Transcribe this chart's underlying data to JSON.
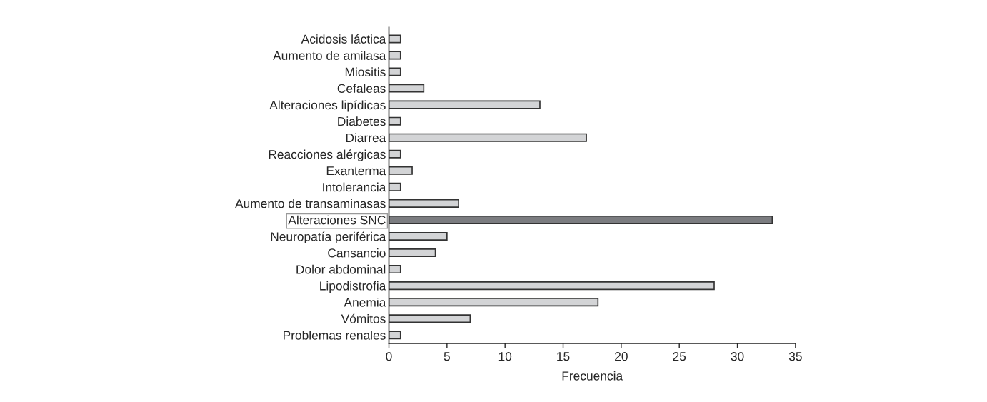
{
  "chart_data": {
    "type": "bar",
    "orientation": "horizontal",
    "xlabel": "Frecuencia",
    "categories": [
      "Acidosis láctica",
      "Aumento de amilasa",
      "Miositis",
      "Cefaleas",
      "Alteraciones lipídicas",
      "Diabetes",
      "Diarrea",
      "Reacciones alérgicas",
      "Exanterma",
      "Intolerancia",
      "Aumento de transaminasas",
      "Alteraciones SNC",
      "Neuropatía periférica",
      "Cansancio",
      "Dolor abdominal",
      "Lipodistrofia",
      "Anemia",
      "Vómitos",
      "Problemas renales"
    ],
    "values": [
      1,
      1,
      1,
      3,
      13,
      1,
      17,
      1,
      2,
      1,
      6,
      33,
      5,
      4,
      1,
      28,
      18,
      7,
      1
    ],
    "colors": [
      "#d3d4d6",
      "#d3d4d6",
      "#d3d4d6",
      "#d3d4d6",
      "#d3d4d6",
      "#d3d4d6",
      "#d3d4d6",
      "#d3d4d6",
      "#d3d4d6",
      "#d3d4d6",
      "#d3d4d6",
      "#7b7c80",
      "#d3d4d6",
      "#d3d4d6",
      "#d3d4d6",
      "#d3d4d6",
      "#d3d4d6",
      "#d3d4d6",
      "#d3d4d6"
    ],
    "xlim": [
      0,
      35
    ],
    "xticks": [
      0,
      5,
      10,
      15,
      20,
      25,
      30,
      35
    ],
    "grid": false,
    "legend": false
  }
}
